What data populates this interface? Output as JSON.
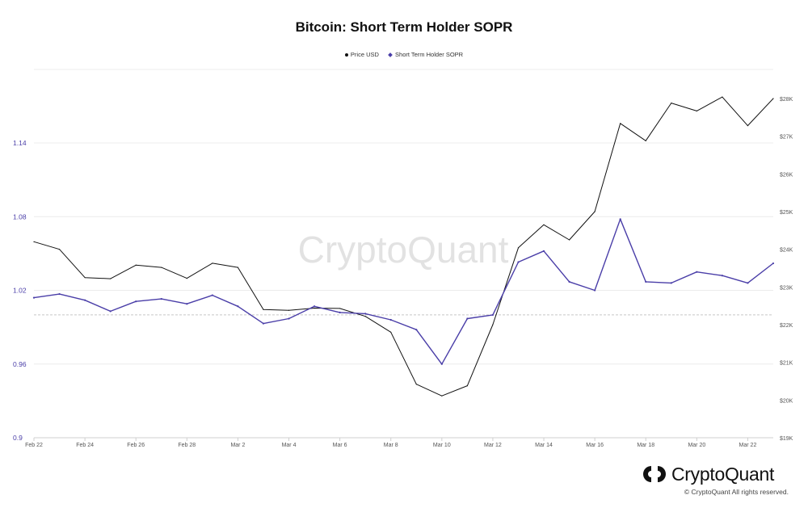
{
  "page": {
    "watermark": "CryptoQuant",
    "brand_name": "CryptoQuant",
    "copyright": "© CryptoQuant All rights reserved.",
    "brand_icon": "cryptoquant-logo-icon"
  },
  "chart_data": {
    "type": "line",
    "title": "Bitcoin: Short Term Holder SOPR",
    "xlabel": "",
    "ylabel": "",
    "x": [
      "Feb 22",
      "Feb 23",
      "Feb 24",
      "Feb 25",
      "Feb 26",
      "Feb 27",
      "Feb 28",
      "Mar 1",
      "Mar 2",
      "Mar 3",
      "Mar 4",
      "Mar 5",
      "Mar 6",
      "Mar 7",
      "Mar 8",
      "Mar 9",
      "Mar 10",
      "Mar 11",
      "Mar 12",
      "Mar 13",
      "Mar 14",
      "Mar 15",
      "Mar 16",
      "Mar 17",
      "Mar 18",
      "Mar 19",
      "Mar 20",
      "Mar 21",
      "Mar 22",
      "Mar 23"
    ],
    "x_tick_labels": [
      "Feb 22",
      "Feb 24",
      "Feb 26",
      "Feb 28",
      "Mar 2",
      "Mar 4",
      "Mar 6",
      "Mar 8",
      "Mar 10",
      "Mar 12",
      "Mar 14",
      "Mar 16",
      "Mar 18",
      "Mar 20",
      "Mar 22"
    ],
    "left_axis": {
      "ticks": [
        "0.9",
        "0.96",
        "1.02",
        "1.08",
        "1.14"
      ],
      "range": [
        0.9,
        1.2
      ]
    },
    "right_axis": {
      "ticks": [
        "$19K",
        "$20K",
        "$21K",
        "$22K",
        "$23K",
        "$24K",
        "$25K",
        "$26K",
        "$27K",
        "$28K"
      ],
      "range": [
        19000,
        28300
      ]
    },
    "reference_line_y": 1.0,
    "grid": true,
    "legend_position": "top-center",
    "series": [
      {
        "name": "Price USD",
        "axis": "right",
        "color": "#111111",
        "marker": "dot",
        "values": [
          24200,
          24000,
          23250,
          23220,
          23580,
          23520,
          23230,
          23630,
          23520,
          22400,
          22380,
          22440,
          22430,
          22220,
          21800,
          20420,
          20110,
          20380,
          22000,
          24040,
          24650,
          24250,
          25000,
          27340,
          26880,
          27880,
          27670,
          28040,
          27280,
          28000
        ]
      },
      {
        "name": "Short Term Holder SOPR",
        "axis": "left",
        "color": "#4a3ea8",
        "marker": "diamond",
        "values": [
          1.014,
          1.017,
          1.012,
          1.003,
          1.011,
          1.013,
          1.009,
          1.016,
          1.007,
          0.993,
          0.997,
          1.007,
          1.002,
          1.001,
          0.996,
          0.988,
          0.96,
          0.997,
          1.0,
          1.043,
          1.052,
          1.027,
          1.02,
          1.078,
          1.027,
          1.026,
          1.035,
          1.032,
          1.026,
          1.042
        ]
      }
    ]
  }
}
